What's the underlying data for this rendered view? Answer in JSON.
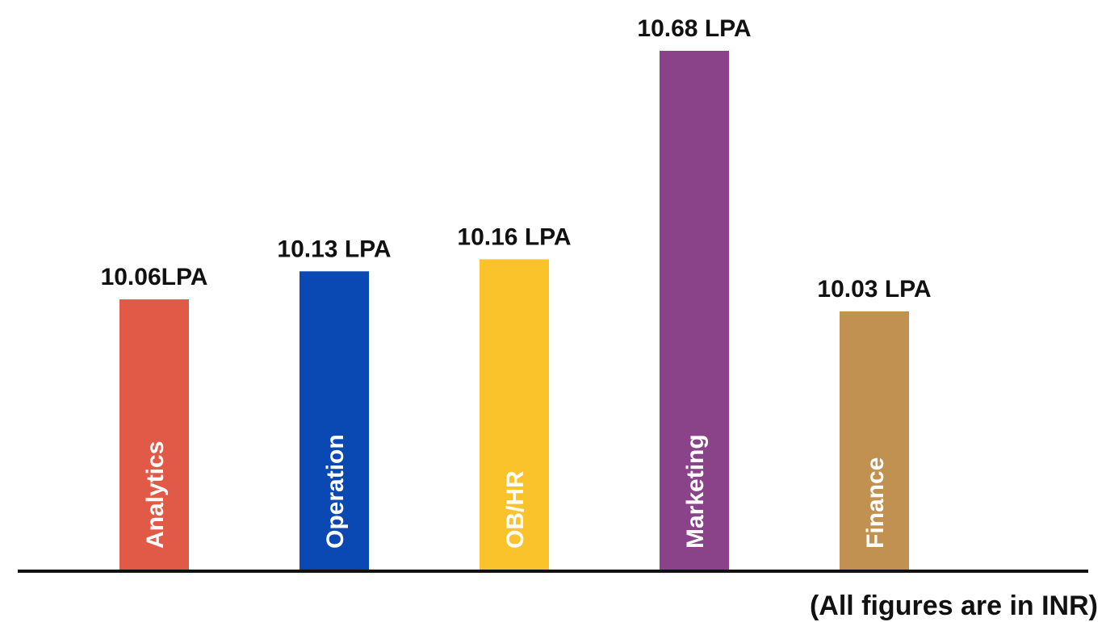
{
  "chart_data": {
    "type": "bar",
    "categories": [
      "Analytics",
      "Operation",
      "OB/HR",
      "Marketing",
      "Finance"
    ],
    "values": [
      10.06,
      10.13,
      10.16,
      10.68,
      10.03
    ],
    "data_labels": [
      "10.06LPA",
      "10.13 LPA",
      "10.16 LPA",
      "10.68 LPA",
      "10.03 LPA"
    ],
    "colors": [
      "#E05A47",
      "#0A48B4",
      "#FBC32B",
      "#8A4388",
      "#C09150"
    ],
    "category_label_placement": "inside-bar-vertical",
    "footnote": "(All figures are in INR)",
    "axis": "x-axis baseline only",
    "grid": false,
    "legend": false
  }
}
